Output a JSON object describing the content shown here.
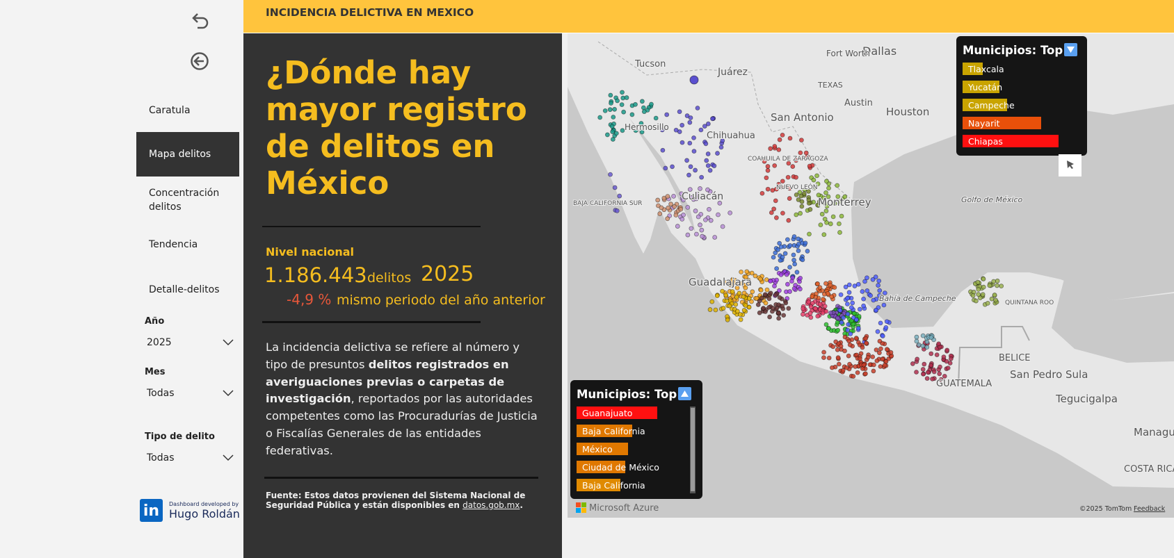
{
  "sidebar": {
    "nav": [
      "Caratula",
      "Mapa delitos",
      "Concentración delitos",
      "Tendencia",
      "Detalle-delitos"
    ],
    "selected": 1,
    "filters": [
      {
        "label": "Año",
        "value": "2025"
      },
      {
        "label": "Mes",
        "value": "Todas"
      },
      {
        "label": "Tipo de delito",
        "value": "Todas"
      }
    ],
    "credit": {
      "badge": "in",
      "caption": "Dashboard developed by",
      "name": "Hugo Roldán"
    }
  },
  "header": {
    "title": "INCIDENCIA DELICTIVA EN MEXICO"
  },
  "intro": {
    "headline": [
      "¿Dónde hay",
      "mayor registro",
      "de delitos en",
      "México"
    ],
    "kpi": {
      "label": "Nivel nacional",
      "total": "1.186.443",
      "unit": "delitos",
      "year": "2025",
      "change": "-4,9 %",
      "change_caption": "mismo periodo del año anterior"
    },
    "paragraph": [
      {
        "text": "La incidencia delictiva se refiere al número y tipo de presuntos ",
        "bold": false
      },
      {
        "text": "delitos registrados en averiguaciones previas o carpetas de investigación",
        "bold": true
      },
      {
        "text": ", reportados por las autoridades competentes como las Procuradurías de Justicia o Fiscalías Generales de las entidades federativas.",
        "bold": false
      }
    ],
    "source": [
      {
        "text": "Fuente: Estos datos provienen del Sistema Nacional de Seguridad Pública y están disponibles en ",
        "link": false
      },
      {
        "text": "datos.gob.mx",
        "link": true
      },
      {
        "text": ".",
        "link": false
      }
    ]
  },
  "map": {
    "labels": [
      "Tucson",
      "Juárez",
      "Dallas",
      "Fort Worth",
      "TEXAS",
      "Austin",
      "Houston",
      "San Antonio",
      "Chihuahua",
      "Hermosillo",
      "COAHUILA DE ZARAGOZA",
      "NUEVO LEÓN",
      "Monterrey",
      "BAJA CALIFORNIA SUR",
      "Culiacán",
      "Guadalajara",
      "Golfo de México",
      "Bahía de Campeche",
      "BELICE",
      "San Pedro Sula",
      "GUATEMALA",
      "Tegucigalpa",
      "Managua",
      "COSTA RICA",
      "QUINTANA ROO"
    ],
    "top_panels": [
      {
        "title": "Municipios: Top 5",
        "items": [
          {
            "name": "Tlaxcala",
            "value": 29,
            "color": "#c9a400"
          },
          {
            "name": "Yucatán",
            "value": 53,
            "color": "#c9a400"
          },
          {
            "name": "Campeche",
            "value": 64,
            "color": "#c9a400"
          },
          {
            "name": "Nayarit",
            "value": 113,
            "color": "#e8500a"
          },
          {
            "name": "Chiapas",
            "value": 138,
            "color": "#ff1010"
          }
        ]
      },
      {
        "title": "Municipios: Top 5",
        "items": [
          {
            "name": "Guanajuato",
            "value": 116,
            "color": "#ff1010"
          },
          {
            "name": "Baja California",
            "value": 80,
            "color": "#e07800"
          },
          {
            "name": "México",
            "value": 74,
            "color": "#e07800"
          },
          {
            "name": "Ciudad de México",
            "value": 70,
            "color": "#e07800"
          },
          {
            "name": "Baja California",
            "value": 63,
            "color": "#e08a00"
          }
        ]
      }
    ],
    "attribution": "Microsoft Azure",
    "copyright": "©2025 TomTom",
    "feedback": "Feedback"
  }
}
